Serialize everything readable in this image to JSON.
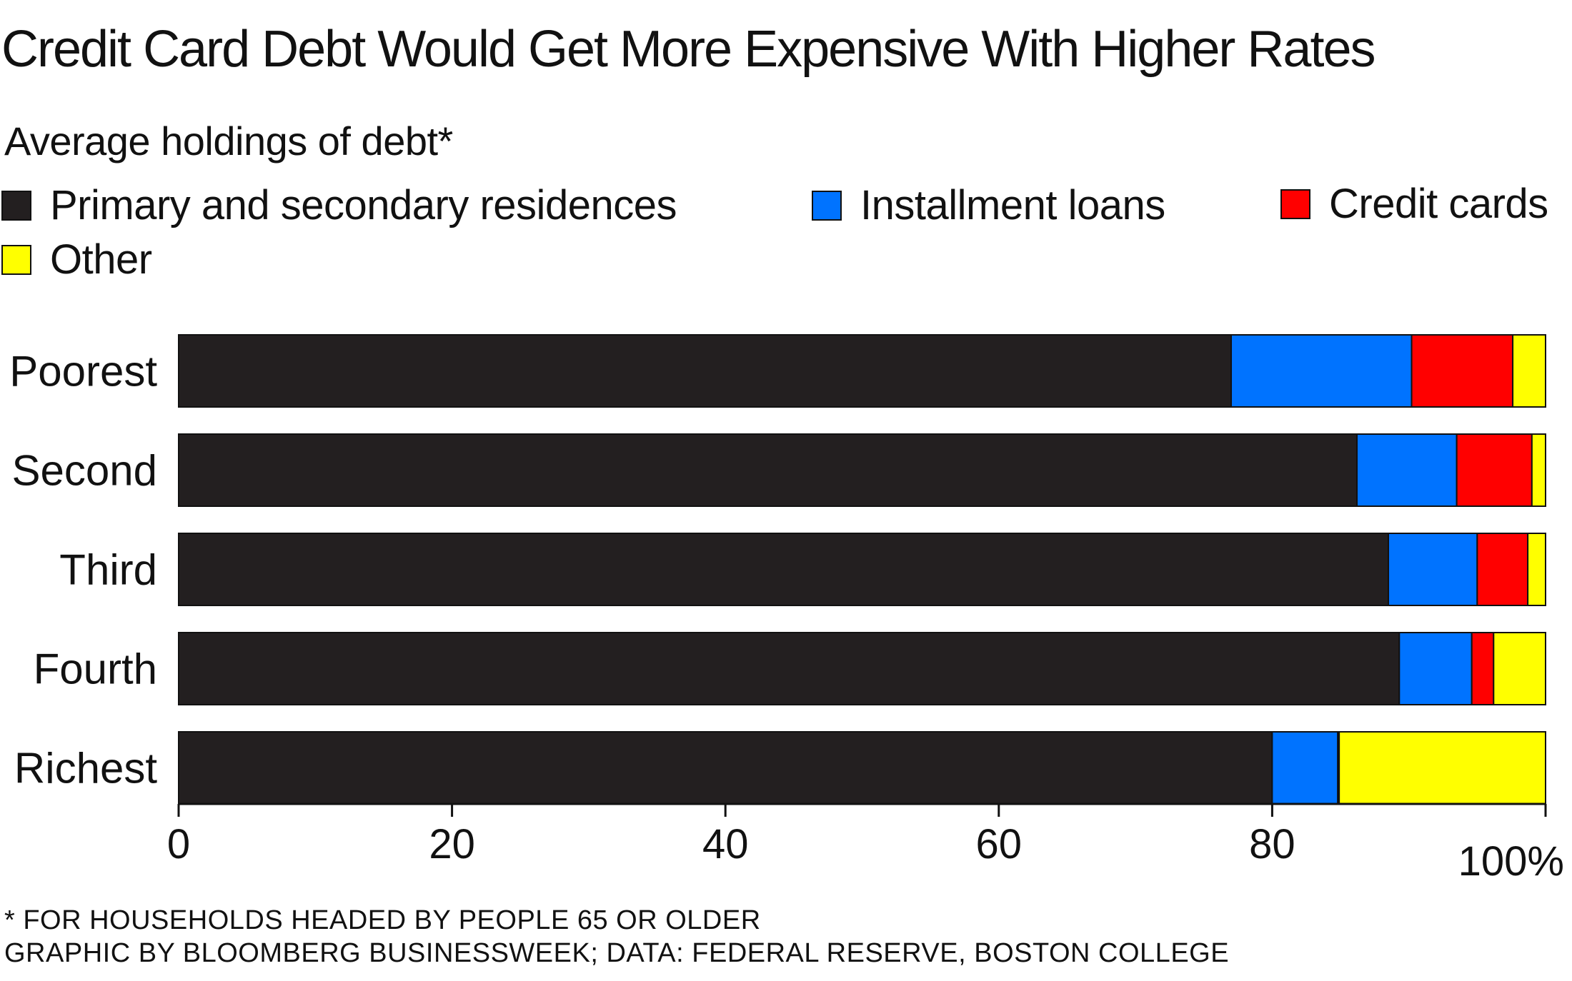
{
  "title": "Credit Card Debt Would Get More Expensive With Higher Rates",
  "subtitle": "Average holdings of debt*",
  "colors": {
    "residences": "#231f20",
    "installment": "#0073ff",
    "credit": "#ff0000",
    "other": "#ffff00",
    "axis": "#111111"
  },
  "legend": [
    {
      "label": "Primary and secondary residences",
      "color": "#231f20"
    },
    {
      "label": "Installment loans",
      "color": "#0073ff"
    },
    {
      "label": "Credit cards",
      "color": "#ff0000"
    },
    {
      "label": "Other",
      "color": "#ffff00"
    }
  ],
  "chart_data": {
    "type": "bar",
    "orientation": "horizontal",
    "stacked": true,
    "categories": [
      "Poorest",
      "Second",
      "Third",
      "Fourth",
      "Richest"
    ],
    "series": [
      {
        "name": "Primary and secondary residences",
        "color": "#231f20",
        "values": [
          77,
          86.2,
          88.5,
          89.3,
          80
        ]
      },
      {
        "name": "Installment loans",
        "color": "#0073ff",
        "values": [
          13.2,
          7.3,
          6.5,
          5.3,
          4.8
        ]
      },
      {
        "name": "Credit cards",
        "color": "#ff0000",
        "values": [
          7.4,
          5.5,
          3.7,
          1.6,
          0.1
        ]
      },
      {
        "name": "Other",
        "color": "#ffff00",
        "values": [
          2.4,
          1.0,
          1.3,
          3.8,
          15.1
        ]
      }
    ],
    "xlim": [
      0,
      100
    ],
    "xticks": [
      "0",
      "20",
      "40",
      "60",
      "80",
      "100%"
    ],
    "grid": false,
    "legend_position": "top"
  },
  "footnote": "* FOR HOUSEHOLDS HEADED BY PEOPLE 65 OR OLDER",
  "source": "GRAPHIC BY BLOOMBERG BUSINESSWEEK; DATA: FEDERAL RESERVE, BOSTON COLLEGE"
}
